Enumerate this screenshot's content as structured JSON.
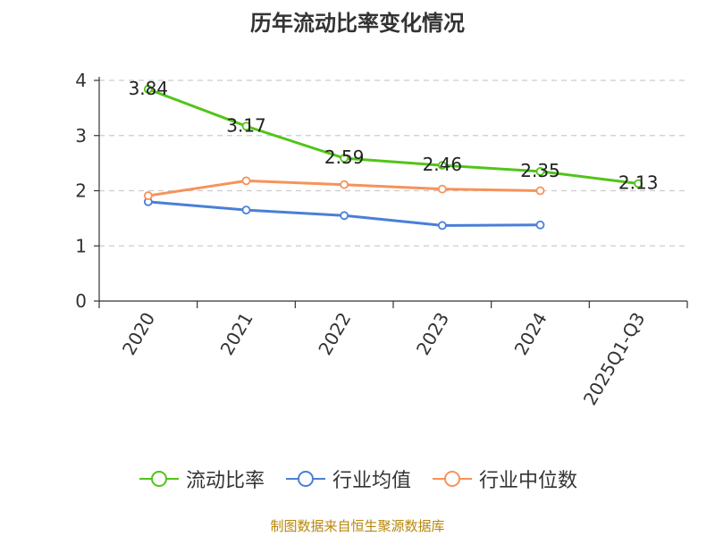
{
  "title": "历年流动比率变化情况",
  "footer": "制图数据来自恒生聚源数据库",
  "chart_data": {
    "type": "line",
    "categories": [
      "2020",
      "2021",
      "2022",
      "2023",
      "2024",
      "2025Q1-Q3"
    ],
    "ylim": [
      0,
      4
    ],
    "yticks": [
      "0",
      "1",
      "2",
      "3",
      "4"
    ],
    "grid": true,
    "legend_position": "bottom",
    "series": [
      {
        "name": "流动比率",
        "values": [
          3.84,
          3.17,
          2.59,
          2.46,
          2.35,
          2.13
        ],
        "labels": [
          "3.84",
          "3.17",
          "2.59",
          "2.46",
          "2.35",
          "2.13"
        ],
        "color": "#52c41a"
      },
      {
        "name": "行业均值",
        "values": [
          1.8,
          1.65,
          1.55,
          1.37,
          1.38,
          null
        ],
        "color": "#4a7fd8"
      },
      {
        "name": "行业中位数",
        "values": [
          1.91,
          2.18,
          2.11,
          2.03,
          2.0,
          null
        ],
        "color": "#f7925a"
      }
    ]
  }
}
